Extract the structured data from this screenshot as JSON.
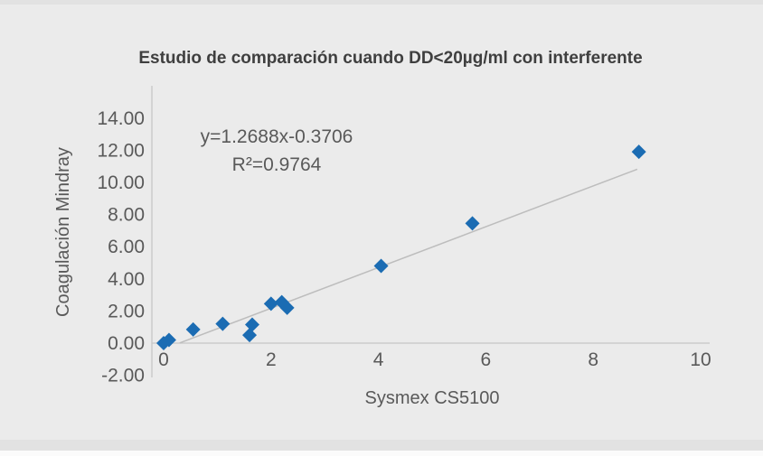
{
  "window": {
    "background_color": "#ebebeb",
    "bar_color": "#e2e2e2"
  },
  "chart_data": {
    "type": "scatter",
    "title": "Estudio de comparación cuando DD<20µg/ml con interferente",
    "xlabel": "Sysmex CS5100",
    "ylabel": "Coagulación Mindray",
    "annotations": {
      "equation": "y=1.2688x-0.3706",
      "r_squared": "R²=0.9764"
    },
    "points": [
      [
        0.0,
        0.0
      ],
      [
        0.1,
        0.2
      ],
      [
        0.55,
        0.85
      ],
      [
        1.1,
        1.2
      ],
      [
        1.6,
        0.5
      ],
      [
        1.65,
        1.15
      ],
      [
        2.0,
        2.45
      ],
      [
        2.2,
        2.55
      ],
      [
        2.3,
        2.2
      ],
      [
        4.05,
        4.8
      ],
      [
        5.75,
        7.45
      ],
      [
        8.85,
        11.9
      ]
    ],
    "trendline": {
      "slope": 1.2688,
      "intercept": -0.3706,
      "x_start": 0.3,
      "x_end": 8.82
    },
    "x_ticks": [
      0,
      2,
      4,
      6,
      8,
      10
    ],
    "x_tick_labels": [
      "0",
      "2",
      "4",
      "6",
      "8",
      "10"
    ],
    "y_ticks": [
      14,
      12,
      10,
      8,
      6,
      4,
      2,
      0,
      -2
    ],
    "y_tick_labels": [
      "14.00",
      "12.00",
      "10.00",
      "8.00",
      "6.00",
      "4.00",
      "2.00",
      "0.00",
      "-2.00"
    ],
    "xlim": [
      0,
      10
    ],
    "ylim": [
      -2,
      14
    ],
    "grid": false,
    "legend": false,
    "marker_shape": "diamond",
    "marker_color": "#1b6cb3",
    "trendline_color": "#bdbdbd",
    "axis_color": "#c6c6c6",
    "text_color": "#595959",
    "title_color": "#3f3f3f"
  }
}
